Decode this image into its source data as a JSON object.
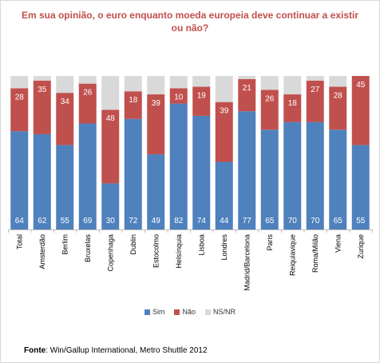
{
  "title": "Em sua opinião, o euro enquanto moeda europeia deve continuar a existir ou não?",
  "source_label": "Fonte",
  "source_text": ": Win/Gallup International, Metro Shuttle 2012",
  "colors": {
    "sim": "#4f81bd",
    "nao": "#c0504d",
    "nsnr": "#d9d9d9",
    "label": "#ffffff",
    "label_top": "#404040"
  },
  "chart_data": {
    "type": "bar",
    "stacked": true,
    "categories": [
      "Total",
      "Amsterdão",
      "Berlim",
      "Bruxelas",
      "Copenhaga",
      "Dublin",
      "Estocolmo",
      "Helsínquia",
      "Lisboa",
      "Londres",
      "Madrid/Barcelona",
      "Paris",
      "Reiquiavique",
      "Roma/Milão",
      "Viena",
      "Zurique"
    ],
    "series": [
      {
        "name": "Sim",
        "values": [
          64,
          62,
          55,
          69,
          30,
          72,
          49,
          82,
          74,
          44,
          77,
          65,
          70,
          70,
          65,
          55
        ]
      },
      {
        "name": "Não",
        "values": [
          28,
          35,
          34,
          26,
          48,
          18,
          39,
          10,
          19,
          39,
          21,
          26,
          18,
          27,
          28,
          45
        ]
      },
      {
        "name": "NS/NR",
        "values": [
          8,
          3,
          11,
          5,
          22,
          10,
          12,
          8,
          7,
          17,
          2,
          9,
          12,
          3,
          7,
          0
        ]
      }
    ],
    "ylim": [
      0,
      100
    ],
    "legend_position": "bottom",
    "grid": false
  }
}
